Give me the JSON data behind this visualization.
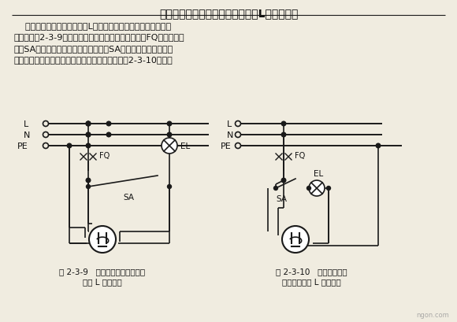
{
  "title": "二、单相照明借用插座回路火线（L）错误接线",
  "para_lines": [
    "    单相照明借用插座回路火线L错误接线电路可造成漏电断路器误",
    "动作，如图2-3-9所示。故障现象：当合上漏电断路器FQ、不合照明",
    "开关SA时，插座回路正常工作；当合上SA时漏电断路器跳闸。该",
    "故障常见于新接照明灯具电路。正确接线方法如图2-3-10所示。"
  ],
  "caption_left_1": "图 2-3-9   单相照明借用插座回路",
  "caption_left_2": "火线 L 错误接线",
  "caption_right_1": "图 2-3-10   单相照明借用",
  "caption_right_2": "插座回路火线 L 正确接线",
  "watermark": "ngon.com",
  "bg_color": "#f0ece0",
  "line_color": "#1a1a1a",
  "text_color": "#111111"
}
